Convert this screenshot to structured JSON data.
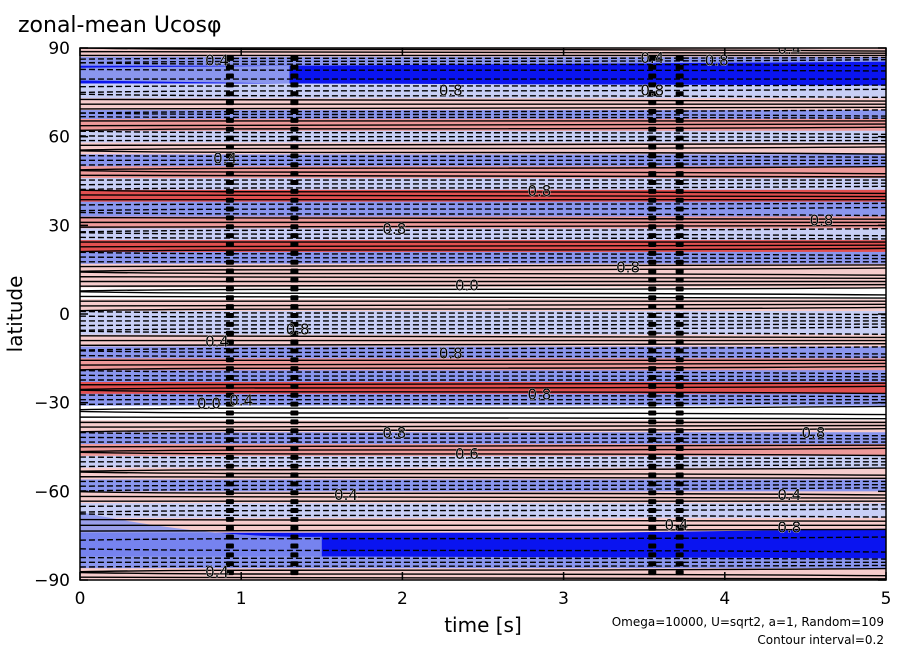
{
  "chart_data": {
    "type": "heatmap",
    "title": "zonal-mean Ucosφ",
    "xlabel": "time [s]",
    "ylabel": "latitude",
    "xlim": [
      0,
      5
    ],
    "ylim": [
      -90,
      90
    ],
    "xticks": [
      {
        "value": 0,
        "label": "0"
      },
      {
        "value": 1,
        "label": "1"
      },
      {
        "value": 2,
        "label": "2"
      },
      {
        "value": 3,
        "label": "3"
      },
      {
        "value": 4,
        "label": "4"
      },
      {
        "value": 5,
        "label": "5"
      }
    ],
    "yticks": [
      {
        "value": 90,
        "label": "90"
      },
      {
        "value": 60,
        "label": "60"
      },
      {
        "value": 30,
        "label": "30"
      },
      {
        "value": 0,
        "label": "0"
      },
      {
        "value": -30,
        "label": "−30"
      },
      {
        "value": -60,
        "label": "−60"
      },
      {
        "value": -90,
        "label": "−90"
      }
    ],
    "annotation_lines": [
      "Omega=10000, U=sqrt2, a=1, Random=109",
      "Contour interval=0.2"
    ],
    "colors": {
      "strong_negative": "#0a14f0",
      "negative": "#8a96ee",
      "weak_negative": "#c8cff6",
      "neutral": "#ffffff",
      "weak_positive": "#f6cccc",
      "positive": "#ee9a9a",
      "strong_positive": "#e25050",
      "contour": "#000000"
    },
    "bands": [
      {
        "lat_from": 90,
        "lat_to": 87,
        "value": 0.2
      },
      {
        "lat_from": 87,
        "lat_to": 84,
        "value": -0.6
      },
      {
        "lat_from": 84,
        "lat_to": 78,
        "value": -1.6
      },
      {
        "lat_from": 78,
        "lat_to": 73,
        "value": -0.4
      },
      {
        "lat_from": 73,
        "lat_to": 69,
        "value": 0.4
      },
      {
        "lat_from": 69,
        "lat_to": 66,
        "value": -0.6
      },
      {
        "lat_from": 66,
        "lat_to": 62,
        "value": 0.6
      },
      {
        "lat_from": 62,
        "lat_to": 58,
        "value": -0.4
      },
      {
        "lat_from": 58,
        "lat_to": 54,
        "value": 0.4
      },
      {
        "lat_from": 54,
        "lat_to": 50,
        "value": -0.6
      },
      {
        "lat_from": 50,
        "lat_to": 46,
        "value": 0.6
      },
      {
        "lat_from": 46,
        "lat_to": 42,
        "value": -0.4
      },
      {
        "lat_from": 42,
        "lat_to": 38,
        "value": 0.8
      },
      {
        "lat_from": 38,
        "lat_to": 33,
        "value": -0.6
      },
      {
        "lat_from": 33,
        "lat_to": 29,
        "value": 0.6
      },
      {
        "lat_from": 29,
        "lat_to": 25,
        "value": -0.4
      },
      {
        "lat_from": 25,
        "lat_to": 21,
        "value": 0.8
      },
      {
        "lat_from": 21,
        "lat_to": 17,
        "value": -0.6
      },
      {
        "lat_from": 17,
        "lat_to": 13,
        "value": 0.4
      },
      {
        "lat_from": 13,
        "lat_to": 9,
        "value": 0.2
      },
      {
        "lat_from": 9,
        "lat_to": 5,
        "value": 0.0
      },
      {
        "lat_from": 5,
        "lat_to": 1,
        "value": 0.4
      },
      {
        "lat_from": 1,
        "lat_to": -3,
        "value": -0.2
      },
      {
        "lat_from": -3,
        "lat_to": -7,
        "value": -0.4
      },
      {
        "lat_from": -7,
        "lat_to": -11,
        "value": 0.4
      },
      {
        "lat_from": -11,
        "lat_to": -15,
        "value": -0.8
      },
      {
        "lat_from": -15,
        "lat_to": -19,
        "value": 0.6
      },
      {
        "lat_from": -19,
        "lat_to": -23,
        "value": -0.6
      },
      {
        "lat_from": -23,
        "lat_to": -27,
        "value": 0.8
      },
      {
        "lat_from": -27,
        "lat_to": -31,
        "value": -0.6
      },
      {
        "lat_from": -31,
        "lat_to": -36,
        "value": 0.0
      },
      {
        "lat_from": -36,
        "lat_to": -40,
        "value": 0.4
      },
      {
        "lat_from": -40,
        "lat_to": -44,
        "value": -0.6
      },
      {
        "lat_from": -44,
        "lat_to": -48,
        "value": 0.6
      },
      {
        "lat_from": -48,
        "lat_to": -52,
        "value": -0.4
      },
      {
        "lat_from": -52,
        "lat_to": -56,
        "value": 0.4
      },
      {
        "lat_from": -56,
        "lat_to": -60,
        "value": -0.6
      },
      {
        "lat_from": -60,
        "lat_to": -64,
        "value": 0.4
      },
      {
        "lat_from": -64,
        "lat_to": -69,
        "value": -0.2
      },
      {
        "lat_from": -69,
        "lat_to": -74,
        "value": 0.2
      },
      {
        "lat_from": -74,
        "lat_to": -82,
        "value": -1.6
      },
      {
        "lat_from": -82,
        "lat_to": -86,
        "value": -0.8
      },
      {
        "lat_from": -86,
        "lat_to": -90,
        "value": 0.2
      }
    ],
    "contour_labels": [
      {
        "text": "0.4",
        "t": 0.85,
        "lat": 84
      },
      {
        "text": "0.4",
        "t": 4.4,
        "lat": 88
      },
      {
        "text": "0.4",
        "t": 3.55,
        "lat": 85
      },
      {
        "text": "0.8",
        "t": 3.95,
        "lat": 84
      },
      {
        "text": "0.8",
        "t": 2.3,
        "lat": 74
      },
      {
        "text": "0.8",
        "t": 3.55,
        "lat": 74
      },
      {
        "text": "0.4",
        "t": 0.9,
        "lat": 51
      },
      {
        "text": "0.8",
        "t": 2.85,
        "lat": 40
      },
      {
        "text": "0.8",
        "t": 1.95,
        "lat": 27
      },
      {
        "text": "0.8",
        "t": 4.6,
        "lat": 30
      },
      {
        "text": "0.8",
        "t": 3.4,
        "lat": 14
      },
      {
        "text": "0.0",
        "t": 2.4,
        "lat": 8
      },
      {
        "text": "0.8",
        "t": 1.35,
        "lat": -7
      },
      {
        "text": "0.4",
        "t": 0.85,
        "lat": -11
      },
      {
        "text": "0.8",
        "t": 2.3,
        "lat": -15
      },
      {
        "text": "0.0",
        "t": 0.8,
        "lat": -32
      },
      {
        "text": "0.4",
        "t": 1.0,
        "lat": -31
      },
      {
        "text": "0.8",
        "t": 2.85,
        "lat": -29
      },
      {
        "text": "0.8",
        "t": 1.95,
        "lat": -42
      },
      {
        "text": "0.8",
        "t": 4.55,
        "lat": -42
      },
      {
        "text": "0.6",
        "t": 2.4,
        "lat": -49
      },
      {
        "text": "0.4",
        "t": 1.65,
        "lat": -63
      },
      {
        "text": "0.4",
        "t": 4.4,
        "lat": -63
      },
      {
        "text": "0.4",
        "t": 0.85,
        "lat": -89
      },
      {
        "text": "0.4",
        "t": 3.7,
        "lat": -73
      },
      {
        "text": "0.8",
        "t": 4.4,
        "lat": -74
      }
    ]
  }
}
